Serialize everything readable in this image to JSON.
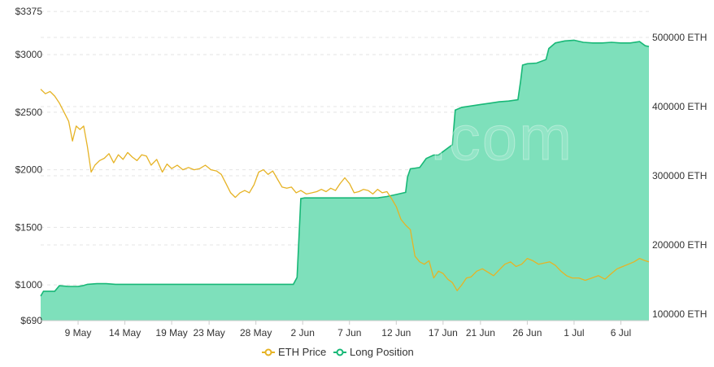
{
  "watermark": "coinglass.com",
  "chart_data": {
    "type": "area",
    "grid": true,
    "legend_placement": "bottom-center",
    "colors": {
      "price": "#e6b325",
      "position_fill": "#7ee0bb",
      "position_line": "#18b877"
    },
    "left_axis": {
      "ticks": [
        {
          "value": 3375,
          "label": "$3375"
        },
        {
          "value": 3000,
          "label": "$3000"
        },
        {
          "value": 2500,
          "label": "$2500"
        },
        {
          "value": 2000,
          "label": "$2000"
        },
        {
          "value": 1500,
          "label": "$1500"
        },
        {
          "value": 1000,
          "label": "$1000"
        },
        {
          "value": 690,
          "label": "$690"
        }
      ]
    },
    "right_axis": {
      "ticks": [
        {
          "value": 500000,
          "label": "500000 ETH"
        },
        {
          "value": 400000,
          "label": "400000 ETH"
        },
        {
          "value": 300000,
          "label": "300000 ETH"
        },
        {
          "value": 200000,
          "label": "200000 ETH"
        },
        {
          "value": 100000,
          "label": "100000 ETH"
        }
      ]
    },
    "x_ticks": [
      {
        "day": 4,
        "label": "9 May"
      },
      {
        "day": 9,
        "label": "14 May"
      },
      {
        "day": 14,
        "label": "19 May"
      },
      {
        "day": 18,
        "label": "23 May"
      },
      {
        "day": 23,
        "label": "28 May"
      },
      {
        "day": 28,
        "label": "2 Jun"
      },
      {
        "day": 33,
        "label": "7 Jun"
      },
      {
        "day": 38,
        "label": "12 Jun"
      },
      {
        "day": 43,
        "label": "17 Jun"
      },
      {
        "day": 47,
        "label": "21 Jun"
      },
      {
        "day": 52,
        "label": "26 Jun"
      },
      {
        "day": 57,
        "label": "1 Jul"
      },
      {
        "day": 62,
        "label": "6 Jul"
      }
    ],
    "series": [
      {
        "name": "ETH Price",
        "axis": "left",
        "points": [
          [
            0,
            2700
          ],
          [
            0.5,
            2660
          ],
          [
            1,
            2680
          ],
          [
            1.5,
            2640
          ],
          [
            2,
            2580
          ],
          [
            2.5,
            2500
          ],
          [
            3,
            2420
          ],
          [
            3.4,
            2250
          ],
          [
            3.8,
            2380
          ],
          [
            4.2,
            2350
          ],
          [
            4.6,
            2380
          ],
          [
            5,
            2200
          ],
          [
            5.4,
            1980
          ],
          [
            5.8,
            2040
          ],
          [
            6.3,
            2080
          ],
          [
            6.8,
            2100
          ],
          [
            7.3,
            2140
          ],
          [
            7.8,
            2060
          ],
          [
            8.3,
            2130
          ],
          [
            8.8,
            2090
          ],
          [
            9.3,
            2150
          ],
          [
            9.8,
            2110
          ],
          [
            10.3,
            2080
          ],
          [
            10.8,
            2130
          ],
          [
            11.3,
            2120
          ],
          [
            11.8,
            2040
          ],
          [
            12.4,
            2090
          ],
          [
            13,
            1980
          ],
          [
            13.5,
            2050
          ],
          [
            14,
            2010
          ],
          [
            14.6,
            2040
          ],
          [
            15.2,
            2000
          ],
          [
            15.8,
            2020
          ],
          [
            16.4,
            2000
          ],
          [
            17,
            2010
          ],
          [
            17.6,
            2040
          ],
          [
            18.2,
            2000
          ],
          [
            18.8,
            1990
          ],
          [
            19.3,
            1960
          ],
          [
            19.8,
            1880
          ],
          [
            20.3,
            1800
          ],
          [
            20.8,
            1760
          ],
          [
            21.3,
            1800
          ],
          [
            21.8,
            1820
          ],
          [
            22.3,
            1800
          ],
          [
            22.8,
            1870
          ],
          [
            23.3,
            1980
          ],
          [
            23.8,
            2000
          ],
          [
            24.3,
            1960
          ],
          [
            24.8,
            1990
          ],
          [
            25.3,
            1920
          ],
          [
            25.8,
            1850
          ],
          [
            26.3,
            1840
          ],
          [
            26.8,
            1850
          ],
          [
            27.3,
            1800
          ],
          [
            27.8,
            1820
          ],
          [
            28.4,
            1790
          ],
          [
            29,
            1800
          ],
          [
            29.5,
            1810
          ],
          [
            30,
            1830
          ],
          [
            30.5,
            1810
          ],
          [
            31,
            1840
          ],
          [
            31.5,
            1820
          ],
          [
            32,
            1880
          ],
          [
            32.5,
            1930
          ],
          [
            33,
            1880
          ],
          [
            33.5,
            1800
          ],
          [
            34,
            1810
          ],
          [
            34.5,
            1830
          ],
          [
            35,
            1820
          ],
          [
            35.5,
            1790
          ],
          [
            36,
            1830
          ],
          [
            36.5,
            1800
          ],
          [
            37,
            1810
          ],
          [
            37.5,
            1750
          ],
          [
            38,
            1680
          ],
          [
            38.5,
            1570
          ],
          [
            39,
            1520
          ],
          [
            39.5,
            1480
          ],
          [
            40,
            1250
          ],
          [
            40.5,
            1200
          ],
          [
            41,
            1180
          ],
          [
            41.5,
            1210
          ],
          [
            42,
            1060
          ],
          [
            42.5,
            1120
          ],
          [
            43,
            1100
          ],
          [
            43.5,
            1050
          ],
          [
            44,
            1020
          ],
          [
            44.5,
            950
          ],
          [
            45,
            1000
          ],
          [
            45.5,
            1060
          ],
          [
            46,
            1070
          ],
          [
            46.6,
            1120
          ],
          [
            47.2,
            1140
          ],
          [
            47.8,
            1110
          ],
          [
            48.4,
            1080
          ],
          [
            49,
            1130
          ],
          [
            49.6,
            1180
          ],
          [
            50.2,
            1200
          ],
          [
            50.8,
            1160
          ],
          [
            51.4,
            1180
          ],
          [
            52,
            1230
          ],
          [
            52.6,
            1210
          ],
          [
            53.2,
            1180
          ],
          [
            53.8,
            1190
          ],
          [
            54.4,
            1200
          ],
          [
            55,
            1170
          ],
          [
            55.6,
            1120
          ],
          [
            56.2,
            1080
          ],
          [
            56.8,
            1060
          ],
          [
            57.5,
            1060
          ],
          [
            58.2,
            1040
          ],
          [
            58.9,
            1060
          ],
          [
            59.6,
            1080
          ],
          [
            60.3,
            1050
          ],
          [
            61,
            1100
          ],
          [
            61.6,
            1140
          ],
          [
            62.2,
            1160
          ],
          [
            62.8,
            1180
          ],
          [
            63.4,
            1200
          ],
          [
            64,
            1230
          ],
          [
            64.6,
            1210
          ],
          [
            65,
            1200
          ]
        ]
      },
      {
        "name": "Long Position",
        "axis": "right",
        "points": [
          [
            0,
            126000
          ],
          [
            0.3,
            133000
          ],
          [
            1,
            133000
          ],
          [
            1.5,
            133000
          ],
          [
            2,
            141000
          ],
          [
            3,
            140000
          ],
          [
            4,
            140000
          ],
          [
            4.5,
            141000
          ],
          [
            5,
            143000
          ],
          [
            6,
            144000
          ],
          [
            7,
            144000
          ],
          [
            8,
            143000
          ],
          [
            9,
            143000
          ],
          [
            10,
            143000
          ],
          [
            11,
            143000
          ],
          [
            12,
            143000
          ],
          [
            13,
            143000
          ],
          [
            14,
            143000
          ],
          [
            15,
            143000
          ],
          [
            16,
            143000
          ],
          [
            17,
            143000
          ],
          [
            18,
            143000
          ],
          [
            19,
            143000
          ],
          [
            20,
            143000
          ],
          [
            21,
            143000
          ],
          [
            22,
            143000
          ],
          [
            23,
            143000
          ],
          [
            24,
            143000
          ],
          [
            25,
            143000
          ],
          [
            26,
            143000
          ],
          [
            27,
            143000
          ],
          [
            27.4,
            153000
          ],
          [
            27.8,
            267000
          ],
          [
            28.2,
            268000
          ],
          [
            29,
            268000
          ],
          [
            30,
            268000
          ],
          [
            31,
            268000
          ],
          [
            32,
            268000
          ],
          [
            33,
            268000
          ],
          [
            34,
            268000
          ],
          [
            35,
            268000
          ],
          [
            36,
            268000
          ],
          [
            37,
            270000
          ],
          [
            38,
            273000
          ],
          [
            39,
            276000
          ],
          [
            39.2,
            298000
          ],
          [
            39.5,
            310000
          ],
          [
            40.5,
            312000
          ],
          [
            41.2,
            325000
          ],
          [
            42,
            330000
          ],
          [
            42.5,
            330000
          ],
          [
            43,
            335000
          ],
          [
            44,
            345000
          ],
          [
            44.3,
            395000
          ],
          [
            45,
            399000
          ],
          [
            46,
            401000
          ],
          [
            47,
            403000
          ],
          [
            48,
            405000
          ],
          [
            49,
            407000
          ],
          [
            50,
            408000
          ],
          [
            51,
            410000
          ],
          [
            51.3,
            438000
          ],
          [
            51.5,
            460000
          ],
          [
            52,
            462000
          ],
          [
            53,
            463000
          ],
          [
            54,
            468000
          ],
          [
            54.3,
            484000
          ],
          [
            55,
            492000
          ],
          [
            56,
            495000
          ],
          [
            57,
            496000
          ],
          [
            58,
            493000
          ],
          [
            59,
            492000
          ],
          [
            60,
            492000
          ],
          [
            61,
            493000
          ],
          [
            62,
            492000
          ],
          [
            63,
            492000
          ],
          [
            64,
            494000
          ],
          [
            64.6,
            488000
          ],
          [
            65,
            487000
          ]
        ]
      }
    ],
    "legend": [
      {
        "label": "ETH Price"
      },
      {
        "label": "Long Position"
      }
    ]
  }
}
